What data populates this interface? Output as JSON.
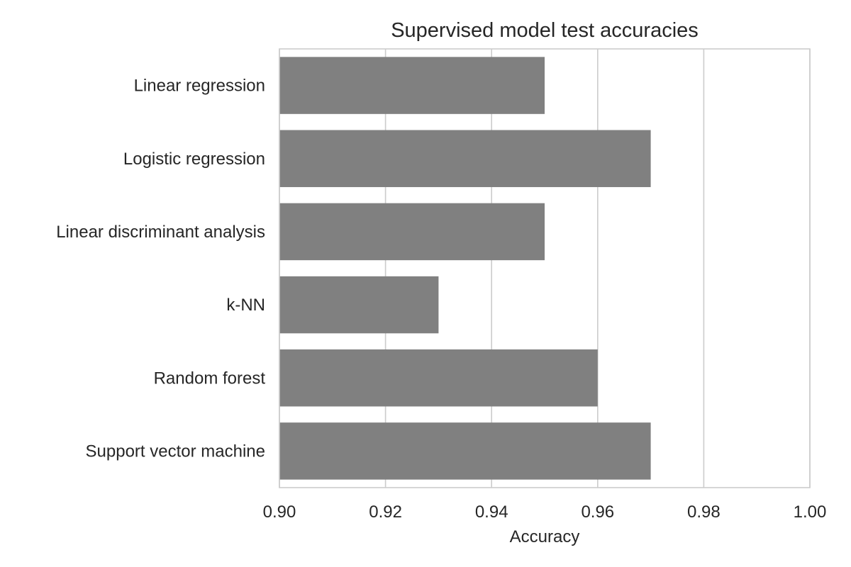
{
  "chart_data": {
    "type": "bar",
    "orientation": "horizontal",
    "title": "Supervised model test accuracies",
    "xlabel": "Accuracy",
    "ylabel": "",
    "categories": [
      "Linear regression",
      "Logistic regression",
      "Linear discriminant analysis",
      "k-NN",
      "Random forest",
      "Support vector machine"
    ],
    "values": [
      0.95,
      0.97,
      0.95,
      0.93,
      0.96,
      0.97
    ],
    "xlim": [
      0.9,
      1.0
    ],
    "xticks": [
      "0.90",
      "0.92",
      "0.94",
      "0.96",
      "0.98",
      "1.00"
    ],
    "grid": "vertical",
    "legend": "none",
    "colors": {
      "bar": "#808080",
      "grid": "#cccccc",
      "spine": "#cccccc",
      "text": "#262626"
    }
  }
}
